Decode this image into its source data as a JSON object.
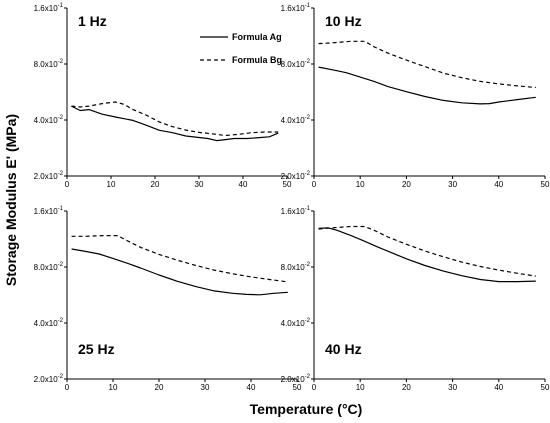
{
  "chart_data": {
    "type": "line",
    "layout": "2x2 small multiples",
    "xlabel": "Temperature (°C)",
    "ylabel": "Storage Modulus E' (MPa)",
    "xlim": [
      0,
      50
    ],
    "x_ticks": [
      "0",
      "10",
      "20",
      "30",
      "40",
      "50"
    ],
    "y_scale": "log",
    "ylim": [
      0.02,
      0.16
    ],
    "y_ticks": [
      {
        "value": 0.16,
        "label": "1.6x10-1"
      },
      {
        "value": 0.08,
        "label": "8.0x10-2"
      },
      {
        "value": 0.04,
        "label": "4.0x10-2"
      },
      {
        "value": 0.02,
        "label": "2.0x10-2"
      }
    ],
    "legend": {
      "placement": "top-center (first panel)",
      "entries": [
        {
          "label": "Formula Ag",
          "style": "solid"
        },
        {
          "label": "Formula Bg",
          "style": "dashed"
        }
      ]
    },
    "color": "#000000",
    "panels": [
      {
        "label": "1 Hz",
        "label_position": "top-left",
        "series": [
          {
            "name": "Formula Ag",
            "style": "solid",
            "x": [
              1,
              3,
              5,
              8,
              11,
              15,
              18,
              21,
              24,
              27,
              30,
              32,
              34,
              36,
              38,
              41,
              44,
              46,
              48
            ],
            "y": [
              0.0475,
              0.045,
              0.0455,
              0.043,
              0.0415,
              0.0398,
              0.0375,
              0.0352,
              0.0342,
              0.0328,
              0.0322,
              0.0318,
              0.031,
              0.0314,
              0.0318,
              0.0318,
              0.0322,
              0.0325,
              0.034
            ]
          },
          {
            "name": "Formula Bg",
            "style": "dashed",
            "x": [
              1,
              3,
              5,
              8,
              11,
              13,
              15,
              18,
              21,
              24,
              27,
              30,
              33,
              36,
              39,
              42,
              45,
              48
            ],
            "y": [
              0.0475,
              0.047,
              0.0475,
              0.049,
              0.05,
              0.0485,
              0.0455,
              0.0425,
              0.039,
              0.0368,
              0.0353,
              0.0343,
              0.0337,
              0.033,
              0.0335,
              0.0342,
              0.0345,
              0.0345
            ]
          }
        ]
      },
      {
        "label": "10 Hz",
        "label_position": "top-left",
        "series": [
          {
            "name": "Formula Ag",
            "style": "solid",
            "x": [
              1,
              4,
              7,
              10,
              13,
              16,
              20,
              24,
              28,
              32,
              36,
              38,
              40,
              44,
              48
            ],
            "y": [
              0.077,
              0.0745,
              0.0718,
              0.068,
              0.0645,
              0.0605,
              0.0568,
              0.0535,
              0.051,
              0.0495,
              0.0488,
              0.049,
              0.05,
              0.0515,
              0.053
            ]
          },
          {
            "name": "Formula Bg",
            "style": "dashed",
            "x": [
              1,
              4,
              8,
              11,
              13,
              16,
              20,
              24,
              28,
              32,
              36,
              40,
              44,
              48
            ],
            "y": [
              0.103,
              0.104,
              0.106,
              0.106,
              0.099,
              0.0915,
              0.084,
              0.0775,
              0.0715,
              0.0675,
              0.0645,
              0.0625,
              0.061,
              0.0598
            ]
          }
        ]
      },
      {
        "label": "25 Hz",
        "label_position": "bottom-left",
        "series": [
          {
            "name": "Formula Ag",
            "style": "solid",
            "x": [
              1,
              4,
              7,
              10,
              13,
              16,
              20,
              24,
              28,
              32,
              36,
              39,
              42,
              45,
              48
            ],
            "y": [
              0.1,
              0.097,
              0.094,
              0.089,
              0.084,
              0.079,
              0.0725,
              0.067,
              0.0628,
              0.0595,
              0.0578,
              0.057,
              0.0567,
              0.0578,
              0.0585
            ]
          },
          {
            "name": "Formula Bg",
            "style": "dashed",
            "x": [
              1,
              4,
              8,
              11,
              13,
              16,
              20,
              24,
              28,
              32,
              36,
              40,
              44,
              48
            ],
            "y": [
              0.117,
              0.117,
              0.118,
              0.118,
              0.111,
              0.102,
              0.0935,
              0.087,
              0.0815,
              0.077,
              0.0735,
              0.0708,
              0.0685,
              0.0665
            ]
          }
        ]
      },
      {
        "label": "40 Hz",
        "label_position": "bottom-left",
        "series": [
          {
            "name": "Formula Ag",
            "style": "solid",
            "x": [
              1,
              3,
              5,
              8,
              11,
              14,
              17,
              20,
              24,
              28,
              32,
              36,
              40,
              44,
              48
            ],
            "y": [
              0.129,
              0.13,
              0.126,
              0.118,
              0.11,
              0.102,
              0.095,
              0.0885,
              0.0815,
              0.076,
              0.0718,
              0.0685,
              0.0668,
              0.0668,
              0.0672
            ]
          },
          {
            "name": "Formula Bg",
            "style": "dashed",
            "x": [
              1,
              4,
              8,
              11,
              13,
              16,
              20,
              24,
              28,
              32,
              36,
              40,
              44,
              48
            ],
            "y": [
              0.128,
              0.13,
              0.132,
              0.132,
              0.126,
              0.116,
              0.106,
              0.0975,
              0.0908,
              0.085,
              0.0805,
              0.077,
              0.074,
              0.0715
            ]
          }
        ]
      }
    ]
  }
}
